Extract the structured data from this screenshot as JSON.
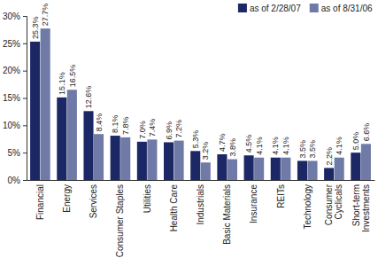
{
  "chart_data": {
    "type": "bar",
    "categories": [
      "Financial",
      "Energy",
      "Services",
      "Consumer Staples",
      "Utilities",
      "Health Care",
      "Industrials",
      "Basic Materials",
      "Insurance",
      "REITs",
      "Technology",
      "Consumer Cyclicals",
      "Short-term Investments"
    ],
    "series": [
      {
        "name": "as of 2/28/07",
        "color": "#1c2766",
        "values": [
          25.3,
          15.1,
          12.6,
          8.1,
          7.0,
          6.9,
          5.3,
          4.7,
          4.5,
          4.1,
          3.5,
          2.2,
          5.0
        ],
        "value_labels": [
          "25.3%",
          "15.1%",
          "12.6%",
          "8.1%",
          "7.0%",
          "6.9%",
          "5.3%",
          "4.7%",
          "4.5%",
          "4.1%",
          "3.5%",
          "2.2%",
          "5.0%"
        ]
      },
      {
        "name": "as of 8/31/06",
        "color": "#6f7ba6",
        "values": [
          27.7,
          16.5,
          8.4,
          7.8,
          7.4,
          7.2,
          3.2,
          3.8,
          4.1,
          4.1,
          3.5,
          4.1,
          6.6
        ],
        "value_labels": [
          "27.7%",
          "16.5%",
          "8.4%",
          "7.8%",
          "7.4%",
          "7.2%",
          "3.2%",
          "3.8%",
          "4.1%",
          "4.1%",
          "3.5%",
          "4.1%",
          "6.6%"
        ]
      }
    ],
    "ylim": [
      0,
      30
    ],
    "yticks": [
      {
        "value": 0,
        "label": "0%"
      },
      {
        "value": 5,
        "label": "5%"
      },
      {
        "value": 10,
        "label": "10%"
      },
      {
        "value": 15,
        "label": "15%"
      },
      {
        "value": 20,
        "label": "20%"
      },
      {
        "value": 25,
        "label": "25%"
      },
      {
        "value": 30,
        "label": "30%"
      }
    ],
    "grid": false,
    "legend": "top-right",
    "data_labels": true
  }
}
